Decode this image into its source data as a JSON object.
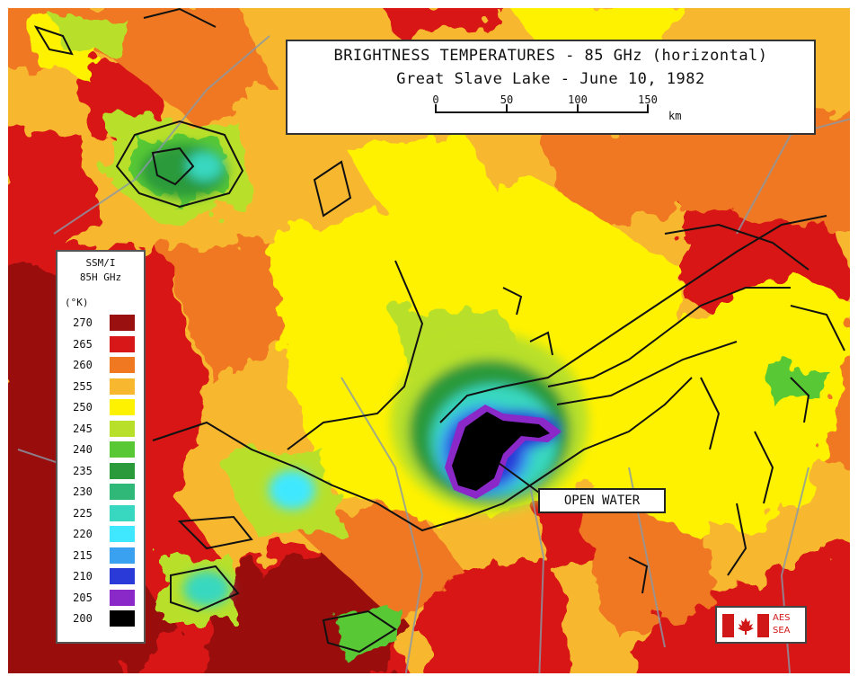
{
  "title": {
    "line1": "BRIGHTNESS TEMPERATURES - 85 GHz (horizontal)",
    "line2": "Great Slave Lake - June 10, 1982"
  },
  "scale": {
    "ticks": [
      "0",
      "50",
      "100",
      "150"
    ],
    "unit": "km"
  },
  "legend": {
    "header1": "SSM/I",
    "header2": "85H GHz",
    "unit": "(°K)",
    "entries": [
      {
        "value": "270",
        "color": "#9a1010"
      },
      {
        "value": "265",
        "color": "#d81818"
      },
      {
        "value": "260",
        "color": "#f07820"
      },
      {
        "value": "255",
        "color": "#f7b830"
      },
      {
        "value": "250",
        "color": "#fff200"
      },
      {
        "value": "245",
        "color": "#b8e02a"
      },
      {
        "value": "240",
        "color": "#58c834"
      },
      {
        "value": "235",
        "color": "#2a9a3a"
      },
      {
        "value": "230",
        "color": "#30b878"
      },
      {
        "value": "225",
        "color": "#38d8c0"
      },
      {
        "value": "220",
        "color": "#40e8ff"
      },
      {
        "value": "215",
        "color": "#3aa0f0"
      },
      {
        "value": "210",
        "color": "#2a3ad8"
      },
      {
        "value": "205",
        "color": "#8a28c8"
      },
      {
        "value": "200",
        "color": "#000000"
      }
    ]
  },
  "annotation": {
    "label": "OPEN WATER"
  },
  "logo": {
    "line1": "AES",
    "line2": "SEA"
  }
}
